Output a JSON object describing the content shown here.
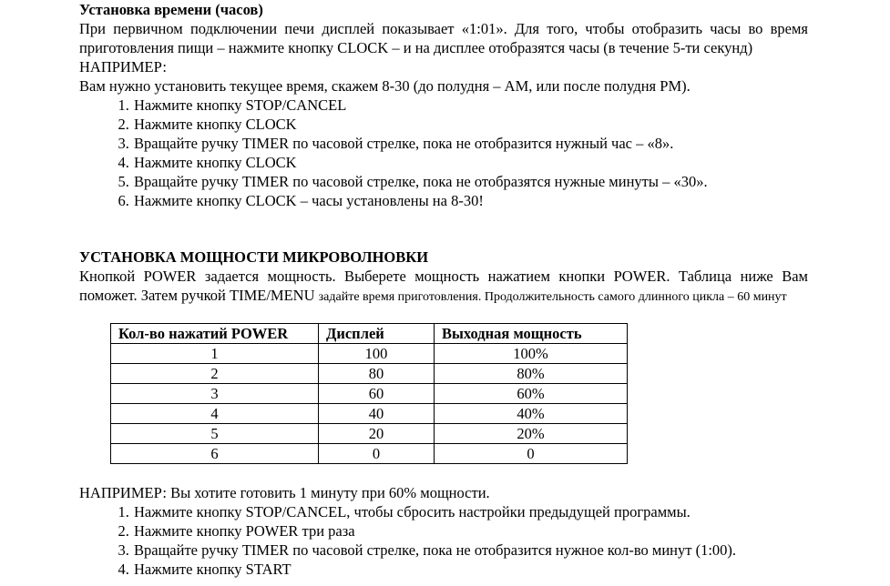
{
  "clock": {
    "title": "Установка времени (часов)",
    "intro": "При первичном подключении печи дисплей показывает «1:01».  Для того, чтобы отобразить часы во время приготовления пищи – нажмите кнопку CLOCK – и на дисплее отобразятся часы (в течение 5-ти секунд)",
    "example_label": "НАПРИМЕР:",
    "example_text": "Вам нужно установить текущее время, скажем 8-30 (до полудня – AM, или после полудня PM).",
    "steps": [
      "Нажмите кнопку STOP/CANCEL",
      "Нажмите кнопку CLOCK",
      "Вращайте ручку TIMER по часовой стрелке, пока не отобразится нужный час – «8».",
      "Нажмите кнопку CLOCK",
      "Вращайте ручку TIMER по часовой стрелке, пока не отобразятся нужные минуты – «30».",
      "Нажмите кнопку CLOCK – часы установлены на 8-30!"
    ]
  },
  "power": {
    "title": "УСТАНОВКА МОЩНОСТИ МИКРОВОЛНОВКИ",
    "intro_a": "Кнопкой POWER задается мощность. Выберете мощность нажатием кнопки POWER.  Таблица ниже Вам поможет.  Затем ручкой TIME/MENU",
    "intro_b": "задайте время приготовления.  Продолжительность самого длинного цикла – 60 минут",
    "table": {
      "headers": [
        "Кол-во нажатий POWER",
        "Дисплей",
        "Выходная мощность"
      ],
      "rows": [
        [
          "1",
          "100",
          "100%"
        ],
        [
          "2",
          "80",
          "80%"
        ],
        [
          "3",
          "60",
          "60%"
        ],
        [
          "4",
          "40",
          "40%"
        ],
        [
          "5",
          "20",
          "20%"
        ],
        [
          "6",
          "0",
          "0"
        ]
      ]
    },
    "example_text": "НАПРИМЕР: Вы хотите готовить 1 минуту при 60% мощности.",
    "steps": [
      "Нажмите кнопку STOP/CANCEL, чтобы сбросить настройки предыдущей программы.",
      "Нажмите кнопку POWER три раза",
      "Вращайте ручку TIMER по часовой стрелке, пока не отобразится нужное кол-во минут (1:00).",
      "Нажмите кнопку START"
    ]
  }
}
